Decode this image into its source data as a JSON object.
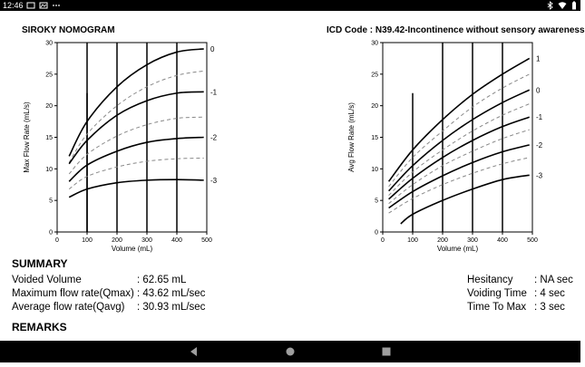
{
  "status_bar": {
    "time": "12:46",
    "left_icons": [
      "message-icon",
      "gallery-icon",
      "more-dots-icon"
    ],
    "right_icons": [
      "bluetooth-icon",
      "wifi-icon",
      "battery-icon"
    ]
  },
  "left_chart_title": "SIROKY NOMOGRAM",
  "right_chart_title": "ICD Code : N39.42-Incontinence without sensory awareness",
  "chart_data": [
    {
      "type": "line",
      "xlabel": "Volume (mL)",
      "ylabel": "Max Flow Rate (mL/s)",
      "xlim": [
        0,
        500
      ],
      "ylim": [
        0,
        30
      ],
      "x_ticks": [
        "0",
        "100",
        "200",
        "300",
        "400",
        "500"
      ],
      "y_ticks": [
        "0",
        "5",
        "10",
        "15",
        "20",
        "25",
        "30"
      ],
      "vertical_markers_x": [
        100,
        200,
        300,
        400
      ],
      "grid": false,
      "series": [
        {
          "name": "0",
          "style": "solid",
          "x": [
            40,
            100,
            200,
            300,
            400,
            490
          ],
          "y": [
            12,
            17.5,
            23,
            26.5,
            28.5,
            29
          ]
        },
        {
          "style": "dashed",
          "x": [
            40,
            100,
            200,
            300,
            400,
            490
          ],
          "y": [
            11,
            15.5,
            20,
            23,
            24.8,
            25.5
          ]
        },
        {
          "name": "-1",
          "style": "solid",
          "x": [
            40,
            100,
            200,
            300,
            400,
            490
          ],
          "y": [
            10.8,
            14.5,
            18.5,
            20.8,
            22,
            22.2
          ]
        },
        {
          "style": "dashed",
          "x": [
            40,
            100,
            200,
            300,
            400,
            490
          ],
          "y": [
            9.2,
            12.3,
            15.2,
            17,
            18,
            18.2
          ]
        },
        {
          "name": "-2",
          "style": "solid",
          "x": [
            40,
            100,
            200,
            300,
            400,
            490
          ],
          "y": [
            8,
            10.6,
            12.8,
            14.2,
            14.8,
            15
          ]
        },
        {
          "style": "dashed",
          "x": [
            40,
            100,
            200,
            300,
            400,
            490
          ],
          "y": [
            6.8,
            8.8,
            10.3,
            11.2,
            11.6,
            11.7
          ]
        },
        {
          "name": "-3",
          "style": "solid",
          "x": [
            40,
            100,
            200,
            300,
            400,
            490
          ],
          "y": [
            5.5,
            6.8,
            7.8,
            8.2,
            8.3,
            8.2
          ]
        }
      ],
      "point_marker": {
        "x": 100,
        "y_range": [
          0,
          22
        ]
      }
    },
    {
      "type": "line",
      "xlabel": "Volume (mL)",
      "ylabel": "Avg Flow Rate (mL/s)",
      "xlim": [
        0,
        500
      ],
      "ylim": [
        0,
        30
      ],
      "x_ticks": [
        "0",
        "100",
        "200",
        "300",
        "400",
        "500"
      ],
      "y_ticks": [
        "0",
        "5",
        "10",
        "15",
        "20",
        "25",
        "30"
      ],
      "vertical_markers_x": [
        200,
        300,
        400
      ],
      "grid": false,
      "series": [
        {
          "name": "1",
          "style": "solid",
          "x": [
            20,
            100,
            200,
            300,
            400,
            490
          ],
          "y": [
            8,
            13,
            17.8,
            21.8,
            25,
            27.5
          ]
        },
        {
          "style": "dashed",
          "x": [
            20,
            100,
            200,
            300,
            400,
            490
          ],
          "y": [
            7.2,
            11.8,
            16,
            19.8,
            22.8,
            25
          ]
        },
        {
          "name": "0",
          "style": "solid",
          "x": [
            20,
            100,
            200,
            300,
            400,
            490
          ],
          "y": [
            6.5,
            10.5,
            14.5,
            17.8,
            20.5,
            22.5
          ]
        },
        {
          "style": "dashed",
          "x": [
            20,
            100,
            200,
            300,
            400,
            490
          ],
          "y": [
            5.8,
            9.5,
            13,
            16,
            18.5,
            20.3
          ]
        },
        {
          "name": "-1",
          "style": "solid",
          "x": [
            20,
            100,
            200,
            300,
            400,
            490
          ],
          "y": [
            5.2,
            8.5,
            11.8,
            14.5,
            16.7,
            18.2
          ]
        },
        {
          "style": "dashed",
          "x": [
            20,
            100,
            200,
            300,
            400,
            490
          ],
          "y": [
            4.5,
            7.5,
            10.5,
            12.8,
            14.8,
            16.2
          ]
        },
        {
          "name": "-2",
          "style": "solid",
          "x": [
            20,
            100,
            200,
            300,
            400,
            490
          ],
          "y": [
            3.8,
            6.4,
            8.9,
            11,
            12.7,
            13.8
          ]
        },
        {
          "style": "dashed",
          "x": [
            20,
            100,
            200,
            300,
            400,
            490
          ],
          "y": [
            3,
            5.3,
            7.5,
            9.3,
            10.8,
            11.8
          ]
        },
        {
          "name": "-3",
          "style": "solid",
          "x": [
            60,
            100,
            200,
            300,
            400,
            490
          ],
          "y": [
            1.3,
            2.8,
            5,
            6.8,
            8.3,
            9
          ]
        }
      ],
      "point_marker": {
        "x": 100,
        "y_range": [
          0,
          22
        ]
      }
    }
  ],
  "summary": {
    "heading": "SUMMARY",
    "left": [
      {
        "label": "Voided Volume",
        "value": ": 62.65 mL"
      },
      {
        "label": "Maximum flow rate(Qmax)",
        "value": ": 43.62 mL/sec"
      },
      {
        "label": "Average flow rate(Qavg)",
        "value": ": 30.93 mL/sec"
      }
    ],
    "right": [
      {
        "label": "Hesitancy",
        "value": ": NA sec"
      },
      {
        "label": "Voiding Time",
        "value": ":   4 sec"
      },
      {
        "label": "Time To Max",
        "value": ":   3 sec"
      }
    ]
  },
  "remarks": {
    "heading": "REMARKS"
  },
  "nav_bar": {
    "buttons": [
      "back-icon",
      "home-icon",
      "recents-icon"
    ]
  }
}
